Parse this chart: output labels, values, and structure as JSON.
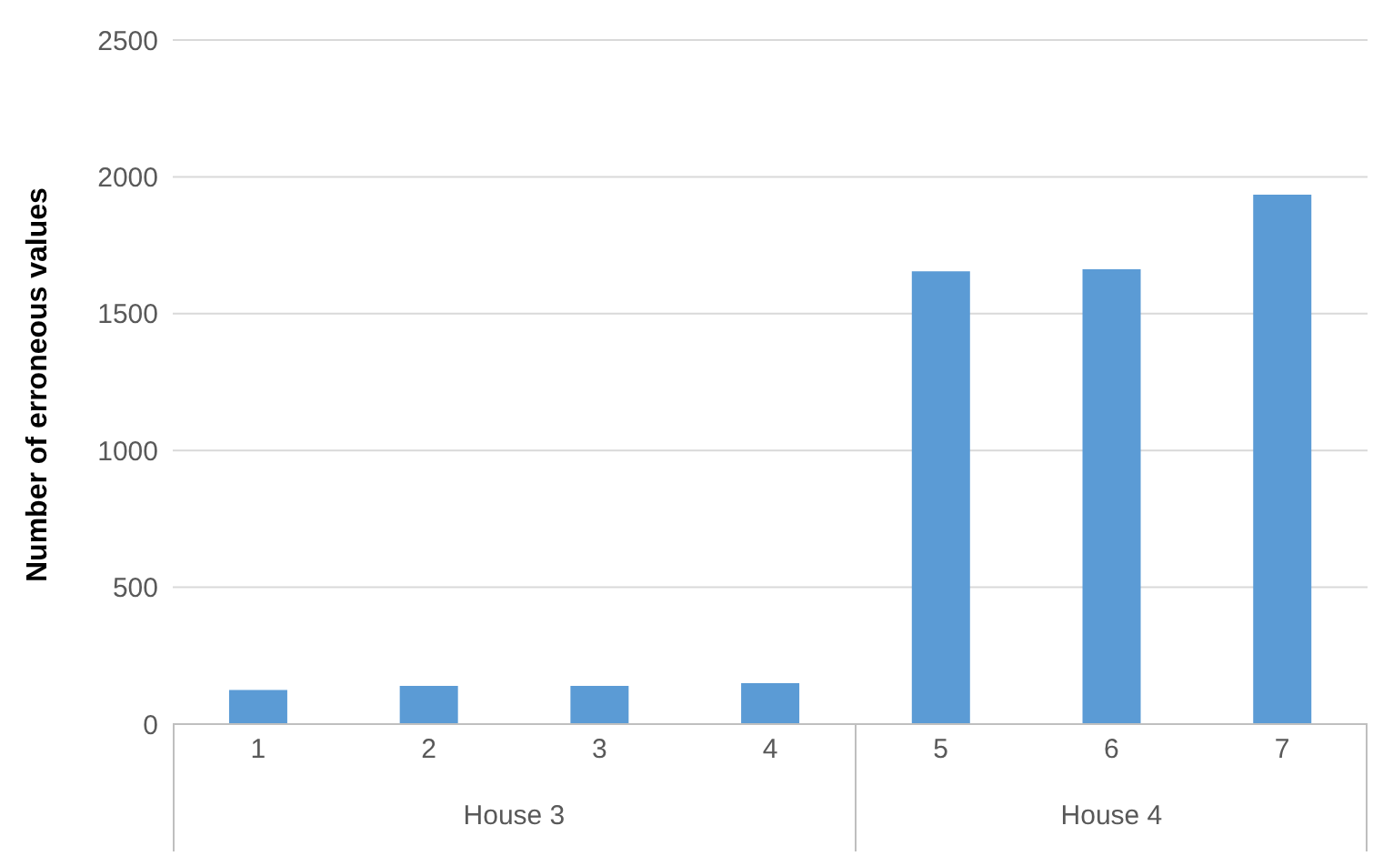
{
  "chart_data": {
    "type": "bar",
    "ylabel": "Number of erroneous values",
    "categories": [
      "1",
      "2",
      "3",
      "4",
      "5",
      "6",
      "7"
    ],
    "values": [
      125,
      140,
      140,
      150,
      1655,
      1662,
      1935
    ],
    "color": "#5b9bd5",
    "ylim": [
      0,
      2500
    ],
    "yticks": [
      0,
      500,
      1000,
      1500,
      2000,
      2500
    ],
    "grid": "y",
    "annotations": [
      "House 3",
      "House 4"
    ]
  }
}
